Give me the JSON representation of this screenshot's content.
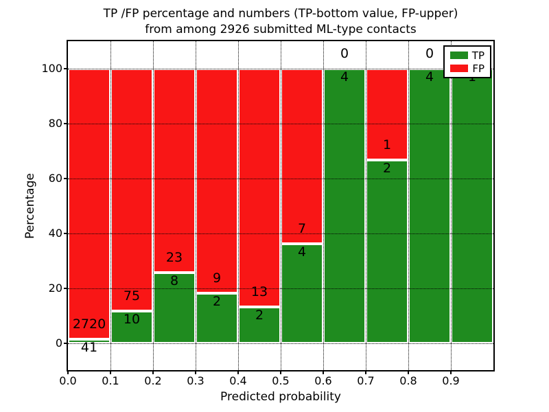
{
  "title": {
    "line1": "TP /FP percentage and numbers (TP-bottom value, FP-upper)",
    "line2": "from among 2926 submitted ML-type contacts"
  },
  "legend": {
    "position": "upper right",
    "items": [
      {
        "label": "TP",
        "color": "#1f8b1f"
      },
      {
        "label": "FP",
        "color": "#f91616"
      }
    ]
  },
  "chart_data": {
    "type": "bar",
    "stacked": true,
    "normalized_to_percent": true,
    "title": "TP /FP percentage and numbers (TP-bottom value, FP-upper) from among 2926 submitted ML-type contacts",
    "xlabel": "Predicted probability",
    "ylabel": "Percentage",
    "xlim": [
      0.0,
      1.0
    ],
    "ylim": [
      -10,
      110
    ],
    "grid": "dotted",
    "bin_width": 0.1,
    "total_contacts": 2926,
    "categories": [
      "0.0-0.1",
      "0.1-0.2",
      "0.2-0.3",
      "0.3-0.4",
      "0.4-0.5",
      "0.5-0.6",
      "0.6-0.7",
      "0.7-0.8",
      "0.8-0.9",
      "0.9-1.0"
    ],
    "series": [
      {
        "name": "TP",
        "color": "#1f8b1f",
        "counts": [
          41,
          10,
          8,
          2,
          2,
          4,
          4,
          2,
          4,
          1
        ]
      },
      {
        "name": "FP",
        "color": "#f91616",
        "counts": [
          2720,
          75,
          23,
          9,
          13,
          7,
          0,
          1,
          0,
          0
        ]
      }
    ],
    "tp_percent": [
      1.5,
      11.8,
      25.8,
      18.2,
      13.3,
      36.4,
      100.0,
      66.7,
      100.0,
      100.0
    ],
    "xticks": [
      "0.0",
      "0.1",
      "0.2",
      "0.3",
      "0.4",
      "0.5",
      "0.6",
      "0.7",
      "0.8",
      "0.9"
    ],
    "yticks": [
      0,
      20,
      40,
      60,
      80,
      100
    ]
  }
}
